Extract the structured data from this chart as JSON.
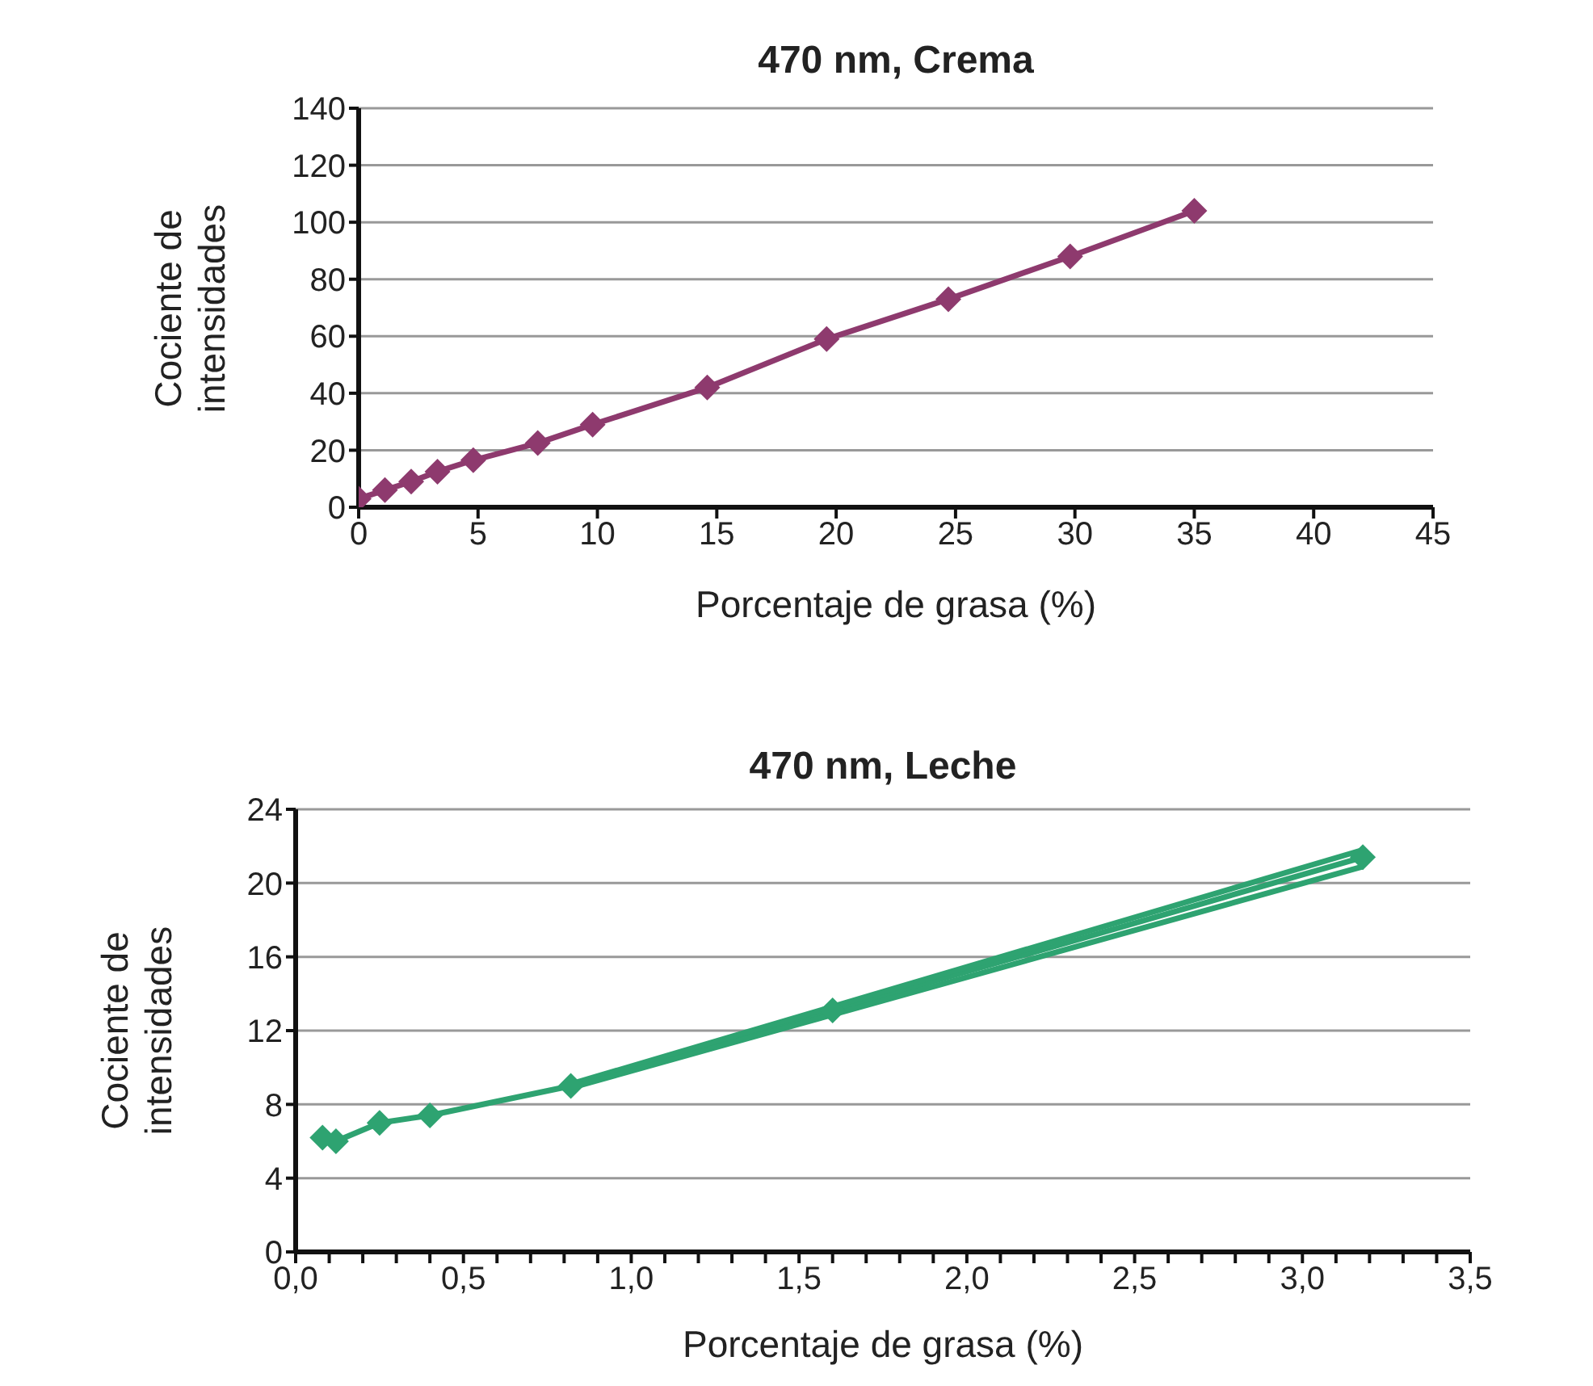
{
  "chart_data": [
    {
      "type": "line",
      "title": "470 nm, Crema",
      "xlabel": "Porcentaje de grasa (%)",
      "ylabel": "Cociente de intensidades",
      "xlim": [
        0,
        45
      ],
      "xticks": [
        0,
        5,
        10,
        15,
        20,
        25,
        30,
        35,
        40,
        45
      ],
      "ylim": [
        0,
        140
      ],
      "yticks": [
        0,
        20,
        40,
        60,
        80,
        100,
        120,
        140
      ],
      "grid": "y",
      "marker": "diamond",
      "line_style": "solid",
      "series": [
        {
          "color": "#8e3a6e",
          "x": [
            0,
            1.1,
            2.2,
            3.3,
            4.8,
            7.5,
            9.8,
            14.6,
            19.6,
            24.7,
            29.8,
            35
          ],
          "values": [
            3,
            6,
            9,
            12.5,
            16.5,
            22.5,
            29,
            42,
            59,
            73,
            88,
            104
          ]
        }
      ]
    },
    {
      "type": "line",
      "title": "470 nm, Leche",
      "xlabel": "Porcentaje de grasa (%)",
      "ylabel": "Cociente de intensidades",
      "xlim": [
        0,
        3.5
      ],
      "xticks": [
        {
          "value": 0,
          "label": "0,0"
        },
        {
          "value": 0.1,
          "label": null
        },
        {
          "value": 0.2,
          "label": null
        },
        {
          "value": 0.3,
          "label": null
        },
        {
          "value": 0.4,
          "label": null
        },
        {
          "value": 0.5,
          "label": "0,5"
        },
        {
          "value": 0.6,
          "label": null
        },
        {
          "value": 0.7,
          "label": null
        },
        {
          "value": 0.8,
          "label": null
        },
        {
          "value": 0.9,
          "label": null
        },
        {
          "value": 1,
          "label": "1,0"
        },
        {
          "value": 1.1,
          "label": null
        },
        {
          "value": 1.2,
          "label": null
        },
        {
          "value": 1.3,
          "label": null
        },
        {
          "value": 1.4,
          "label": null
        },
        {
          "value": 1.5,
          "label": "1,5"
        },
        {
          "value": 1.6,
          "label": null
        },
        {
          "value": 1.7,
          "label": null
        },
        {
          "value": 1.8,
          "label": null
        },
        {
          "value": 1.9,
          "label": null
        },
        {
          "value": 2,
          "label": "2,0"
        },
        {
          "value": 2.1,
          "label": null
        },
        {
          "value": 2.2,
          "label": null
        },
        {
          "value": 2.3,
          "label": null
        },
        {
          "value": 2.4,
          "label": null
        },
        {
          "value": 2.5,
          "label": "2,5"
        },
        {
          "value": 2.6,
          "label": null
        },
        {
          "value": 2.7,
          "label": null
        },
        {
          "value": 2.8,
          "label": null
        },
        {
          "value": 2.9,
          "label": null
        },
        {
          "value": 3,
          "label": "3,0"
        },
        {
          "value": 3.1,
          "label": null
        },
        {
          "value": 3.2,
          "label": null
        },
        {
          "value": 3.3,
          "label": null
        },
        {
          "value": 3.4,
          "label": null
        },
        {
          "value": 3.5,
          "label": "3,5"
        }
      ],
      "ylim": [
        0,
        24
      ],
      "yticks": [
        0,
        4,
        8,
        12,
        16,
        20,
        24
      ],
      "grid": "y",
      "marker": "diamond",
      "line_style": "solid",
      "series": [
        {
          "color": "#2ea371",
          "x": [
            0.08,
            0.12,
            0.25,
            0.4,
            0.82,
            1.6,
            3.18
          ],
          "values": [
            6.2,
            6.0,
            7.0,
            7.4,
            9.0,
            13.1,
            21.4
          ]
        },
        {
          "color": "#2ea371",
          "marker": "none",
          "x": [
            0.82,
            3.18
          ],
          "values": [
            9.1,
            21.8
          ]
        },
        {
          "color": "#2ea371",
          "marker": "none",
          "x": [
            0.82,
            3.18
          ],
          "values": [
            8.9,
            20.9
          ]
        }
      ]
    }
  ]
}
